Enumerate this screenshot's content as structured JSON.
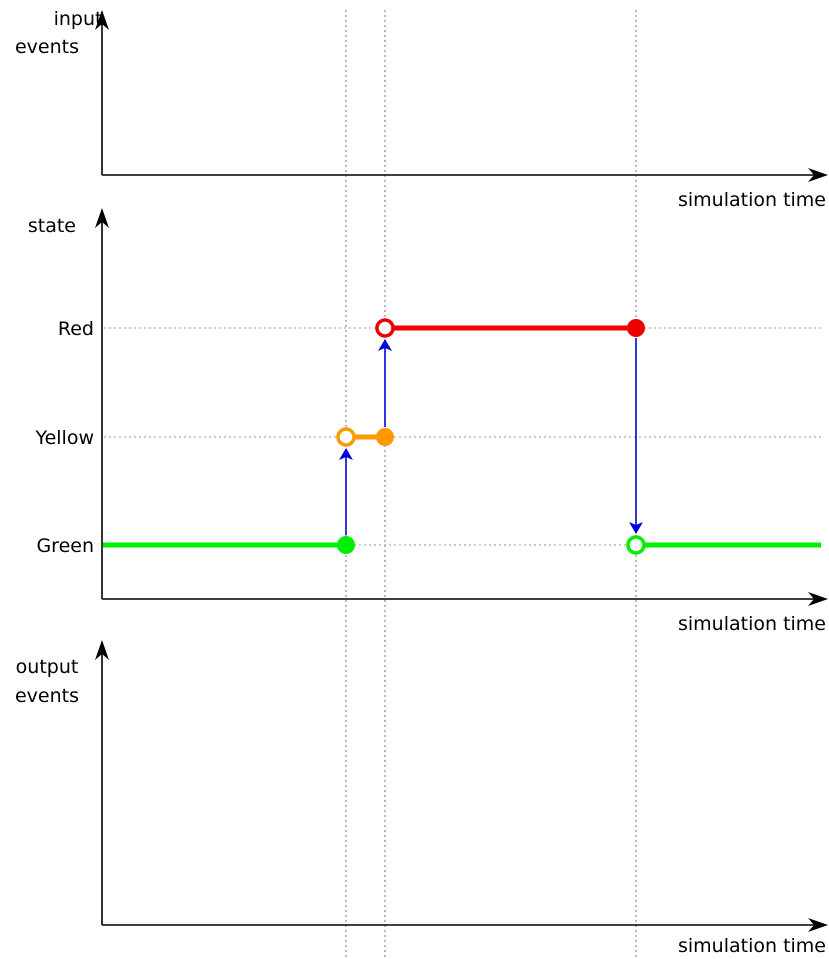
{
  "panels": {
    "input": {
      "ylabel_line1": "input",
      "ylabel_line2": "events",
      "xlabel": "simulation time"
    },
    "state": {
      "ylabel": "state",
      "xlabel": "simulation time"
    },
    "output": {
      "ylabel_line1": "output",
      "ylabel_line2": "events",
      "xlabel": "simulation time"
    }
  },
  "states": [
    {
      "key": "red",
      "label": "Red",
      "color": "#ee0000"
    },
    {
      "key": "yellow",
      "label": "Yellow",
      "color": "#ff9900"
    },
    {
      "key": "green",
      "label": "Green",
      "color": "#00ee00"
    }
  ],
  "colors": {
    "transition_arrow": "#0000dd",
    "axis": "#000000"
  }
}
